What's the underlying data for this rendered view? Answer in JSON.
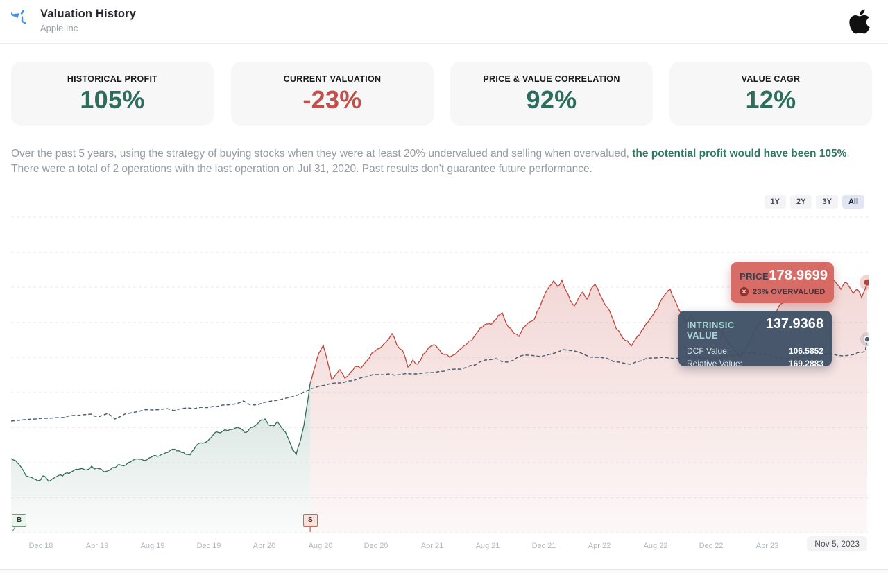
{
  "header": {
    "title": "Valuation History",
    "subtitle": "Apple Inc"
  },
  "icons": {
    "header": "history-icon",
    "brand": "apple-logo",
    "overvalued_badge": "circle-x-icon"
  },
  "stats": [
    {
      "label": "HISTORICAL PROFIT",
      "value": "105%",
      "color": "#2c6e5b"
    },
    {
      "label": "CURRENT VALUATION",
      "value": "-23%",
      "color": "#c2504a"
    },
    {
      "label": "PRICE & VALUE CORRELATION",
      "value": "92%",
      "color": "#2c6e5b"
    },
    {
      "label": "VALUE CAGR",
      "value": "12%",
      "color": "#2c6e5b"
    }
  ],
  "description": {
    "part1": "Over the past 5 years, using the strategy of buying stocks when they were at least 20% undervalued and selling when overvalued, ",
    "highlight": "the potential profit would have been 105%",
    "highlight_color": "#2c7a5f",
    "part2": ". There were a total of 2 operations with the last operation on Jul 31, 2020. Past results don't guarantee future performance."
  },
  "range_buttons": [
    {
      "label": "1Y",
      "active": false
    },
    {
      "label": "2Y",
      "active": false
    },
    {
      "label": "3Y",
      "active": false
    },
    {
      "label": "All",
      "active": true
    }
  ],
  "tooltips": {
    "price": {
      "label": "PRICE",
      "value": "178.9699",
      "badge": "23% OVERVALUED"
    },
    "intrinsic": {
      "label": "INTRINSIC VALUE",
      "value": "137.9368",
      "rows": [
        {
          "label": "DCF Value:",
          "value": "106.5852"
        },
        {
          "label": "Relative Value:",
          "value": "169.2883"
        }
      ]
    }
  },
  "x_axis": {
    "end_label": "Nov 5, 2023"
  },
  "chart_data": {
    "type": "area",
    "x_unit": "months since Dec 2018",
    "x_range": [
      -2.14,
      59.27
    ],
    "y_unit": "USD",
    "y_range": [
      0,
      226
    ],
    "grid": "horizontal-dashed",
    "legend": "none",
    "x_ticks": [
      {
        "label": "Dec 18",
        "t": 0
      },
      {
        "label": "Apr 19",
        "t": 4
      },
      {
        "label": "Aug 19",
        "t": 8
      },
      {
        "label": "Dec 19",
        "t": 12
      },
      {
        "label": "Apr 20",
        "t": 16
      },
      {
        "label": "Aug 20",
        "t": 20
      },
      {
        "label": "Dec 20",
        "t": 24
      },
      {
        "label": "Apr 21",
        "t": 28
      },
      {
        "label": "Aug 21",
        "t": 32
      },
      {
        "label": "Dec 21",
        "t": 36
      },
      {
        "label": "Apr 22",
        "t": 40
      },
      {
        "label": "Aug 22",
        "t": 44
      },
      {
        "label": "Dec 22",
        "t": 48
      },
      {
        "label": "Apr 23",
        "t": 52
      }
    ],
    "series": [
      {
        "name": "Price (undervalued / holding period)",
        "color": "#2e6e57",
        "style": "solid-area",
        "points": [
          [
            -2.14,
            52
          ],
          [
            -1.44,
            46
          ],
          [
            -0.7,
            38.5
          ],
          [
            -0.2,
            36
          ],
          [
            0.15,
            39.5
          ],
          [
            0.55,
            35.5
          ],
          [
            0.94,
            38
          ],
          [
            1.29,
            40
          ],
          [
            1.79,
            41.5
          ],
          [
            2.29,
            43
          ],
          [
            3.03,
            44.5
          ],
          [
            3.63,
            46.5
          ],
          [
            4.02,
            45
          ],
          [
            4.52,
            42.5
          ],
          [
            4.92,
            43.5
          ],
          [
            5.32,
            45.5
          ],
          [
            5.76,
            47
          ],
          [
            6.41,
            49.5
          ],
          [
            7,
            51.5
          ],
          [
            7.75,
            52.5
          ],
          [
            8.49,
            54
          ],
          [
            9.09,
            56.5
          ],
          [
            9.74,
            57.5
          ],
          [
            10.38,
            55
          ],
          [
            10.98,
            59
          ],
          [
            11.58,
            63
          ],
          [
            12.22,
            67.5
          ],
          [
            12.87,
            70.5
          ],
          [
            13.46,
            72.5
          ],
          [
            14.06,
            74.5
          ],
          [
            14.56,
            71
          ],
          [
            15.05,
            74.5
          ],
          [
            15.55,
            77.5
          ],
          [
            16.05,
            80.5
          ],
          [
            16.54,
            76
          ],
          [
            16.94,
            78.5
          ],
          [
            17.34,
            73
          ],
          [
            17.69,
            67
          ],
          [
            18.03,
            58
          ],
          [
            18.28,
            55
          ],
          [
            18.58,
            65
          ],
          [
            18.83,
            76
          ],
          [
            19.08,
            92
          ],
          [
            19.28,
            106.3
          ]
        ]
      },
      {
        "name": "Price (overvalued / sold period)",
        "color": "#c0453c",
        "style": "solid-area",
        "points": [
          [
            19.28,
            106.3
          ],
          [
            19.52,
            115
          ],
          [
            19.77,
            124
          ],
          [
            20.02,
            130
          ],
          [
            20.22,
            133.5
          ],
          [
            20.42,
            126
          ],
          [
            20.62,
            118
          ],
          [
            20.82,
            109
          ],
          [
            21.07,
            112
          ],
          [
            21.41,
            116
          ],
          [
            21.76,
            110
          ],
          [
            22.16,
            114
          ],
          [
            22.5,
            118.5
          ],
          [
            22.9,
            117
          ],
          [
            23.3,
            122
          ],
          [
            23.7,
            128
          ],
          [
            24.1,
            131
          ],
          [
            24.44,
            133
          ],
          [
            24.79,
            137
          ],
          [
            25.14,
            142
          ],
          [
            25.48,
            134
          ],
          [
            25.88,
            130
          ],
          [
            26.28,
            118
          ],
          [
            26.63,
            123
          ],
          [
            26.97,
            120
          ],
          [
            27.37,
            127
          ],
          [
            27.77,
            132
          ],
          [
            28.12,
            134
          ],
          [
            28.47,
            131
          ],
          [
            28.86,
            127
          ],
          [
            29.26,
            125
          ],
          [
            29.66,
            127
          ],
          [
            30.05,
            131
          ],
          [
            30.45,
            134
          ],
          [
            30.85,
            137
          ],
          [
            31.25,
            143
          ],
          [
            31.64,
            147
          ],
          [
            32.04,
            149
          ],
          [
            32.44,
            151
          ],
          [
            32.74,
            155
          ],
          [
            33.03,
            157
          ],
          [
            33.33,
            149
          ],
          [
            33.63,
            146
          ],
          [
            33.93,
            142
          ],
          [
            34.23,
            140
          ],
          [
            34.52,
            146
          ],
          [
            34.92,
            150
          ],
          [
            35.32,
            152
          ],
          [
            35.72,
            161
          ],
          [
            36.11,
            171
          ],
          [
            36.41,
            176
          ],
          [
            36.71,
            180
          ],
          [
            37.01,
            176
          ],
          [
            37.31,
            180.5
          ],
          [
            37.6,
            173
          ],
          [
            37.9,
            166
          ],
          [
            38.2,
            162
          ],
          [
            38.5,
            168
          ],
          [
            38.8,
            172
          ],
          [
            39.1,
            167
          ],
          [
            39.39,
            174
          ],
          [
            39.69,
            177.5
          ],
          [
            40.04,
            170
          ],
          [
            40.39,
            163
          ],
          [
            40.78,
            157
          ],
          [
            41.18,
            146
          ],
          [
            41.58,
            140
          ],
          [
            41.98,
            137
          ],
          [
            42.27,
            133
          ],
          [
            42.57,
            138
          ],
          [
            42.87,
            141
          ],
          [
            43.17,
            146
          ],
          [
            43.52,
            151
          ],
          [
            43.86,
            156
          ],
          [
            44.16,
            160
          ],
          [
            44.46,
            167
          ],
          [
            44.76,
            171
          ],
          [
            45.06,
            174
          ],
          [
            45.36,
            167
          ],
          [
            45.65,
            160
          ],
          [
            45.95,
            155
          ],
          [
            46.25,
            150
          ],
          [
            46.55,
            155
          ],
          [
            46.85,
            150
          ],
          [
            47.14,
            145
          ],
          [
            47.44,
            142
          ],
          [
            47.74,
            147
          ],
          [
            48.04,
            152
          ],
          [
            48.34,
            148
          ],
          [
            48.63,
            144
          ],
          [
            48.93,
            140
          ],
          [
            49.23,
            136
          ],
          [
            49.53,
            132
          ],
          [
            49.83,
            129
          ],
          [
            50.12,
            126
          ],
          [
            50.42,
            130
          ],
          [
            50.72,
            135
          ],
          [
            51.02,
            143
          ],
          [
            51.32,
            148
          ],
          [
            51.61,
            151
          ],
          [
            51.91,
            153
          ],
          [
            52.21,
            150
          ],
          [
            52.51,
            155
          ],
          [
            52.81,
            161
          ],
          [
            53.11,
            164
          ],
          [
            53.4,
            166
          ],
          [
            53.7,
            169
          ],
          [
            54,
            173
          ],
          [
            54.3,
            175
          ],
          [
            54.6,
            178
          ],
          [
            54.89,
            181
          ],
          [
            55.19,
            184
          ],
          [
            55.49,
            188
          ],
          [
            55.79,
            191
          ],
          [
            56.09,
            193
          ],
          [
            56.38,
            187
          ],
          [
            56.68,
            181
          ],
          [
            56.98,
            178
          ],
          [
            57.28,
            174
          ],
          [
            57.58,
            179
          ],
          [
            57.87,
            176
          ],
          [
            58.17,
            171
          ],
          [
            58.47,
            174
          ],
          [
            58.77,
            168
          ],
          [
            58.97,
            173
          ],
          [
            59.17,
            178.97
          ]
        ]
      },
      {
        "name": "Intrinsic Value",
        "color": "#4d5f78",
        "style": "dashed",
        "points": [
          [
            -2.14,
            79
          ],
          [
            -1.2,
            80
          ],
          [
            -0.4,
            80.5
          ],
          [
            0.6,
            81
          ],
          [
            1.6,
            81.5
          ],
          [
            2.6,
            83
          ],
          [
            3.6,
            84
          ],
          [
            4.1,
            82
          ],
          [
            4.8,
            84.5
          ],
          [
            5.3,
            80.5
          ],
          [
            6,
            84
          ],
          [
            7,
            86
          ],
          [
            8,
            87
          ],
          [
            9,
            88
          ],
          [
            9.5,
            86.5
          ],
          [
            10.5,
            88.5
          ],
          [
            11.5,
            89
          ],
          [
            12.3,
            89.5
          ],
          [
            13,
            90.5
          ],
          [
            14,
            91.5
          ],
          [
            14.5,
            93.5
          ],
          [
            15,
            90.5
          ],
          [
            16,
            92.5
          ],
          [
            17,
            94
          ],
          [
            18,
            96.5
          ],
          [
            18.6,
            98.5
          ],
          [
            19.1,
            101
          ],
          [
            19.6,
            103
          ],
          [
            20.1,
            104.5
          ],
          [
            20.7,
            106
          ],
          [
            21.4,
            106.5
          ],
          [
            22,
            108
          ],
          [
            22.7,
            109.5
          ],
          [
            23.4,
            111
          ],
          [
            24.1,
            112.5
          ],
          [
            24.9,
            113
          ],
          [
            25.7,
            112.5
          ],
          [
            26.5,
            113
          ],
          [
            27.3,
            113.5
          ],
          [
            28.1,
            114
          ],
          [
            28.9,
            115
          ],
          [
            29.7,
            116.5
          ],
          [
            30.4,
            117.5
          ],
          [
            31.1,
            119.5
          ],
          [
            31.8,
            123
          ],
          [
            32.6,
            124
          ],
          [
            33.4,
            121.5
          ],
          [
            34.2,
            125.5
          ],
          [
            35,
            126.5
          ],
          [
            35.8,
            125.5
          ],
          [
            36.6,
            127.5
          ],
          [
            37.4,
            130.5
          ],
          [
            38.2,
            129.5
          ],
          [
            39,
            126.5
          ],
          [
            39.8,
            125
          ],
          [
            40.6,
            124
          ],
          [
            41.4,
            121.5
          ],
          [
            42.2,
            120
          ],
          [
            43,
            122.5
          ],
          [
            43.8,
            124.5
          ],
          [
            44.6,
            125
          ],
          [
            45.4,
            124
          ],
          [
            46.2,
            125.5
          ],
          [
            47,
            125
          ],
          [
            47.8,
            123.5
          ],
          [
            48.6,
            124.5
          ],
          [
            49.4,
            126
          ],
          [
            50.2,
            127.5
          ],
          [
            51,
            128
          ],
          [
            51.8,
            127
          ],
          [
            52.6,
            125.5
          ],
          [
            53.4,
            124
          ],
          [
            54.2,
            125
          ],
          [
            55,
            126.5
          ],
          [
            55.8,
            128
          ],
          [
            56.6,
            127.5
          ],
          [
            57.4,
            126
          ],
          [
            58.2,
            127
          ],
          [
            58.8,
            128.5
          ],
          [
            59.02,
            129
          ],
          [
            59.17,
            137.94
          ]
        ]
      }
    ],
    "markers": {
      "buy": {
        "label": "B",
        "t": -1.6
      },
      "sell": {
        "label": "S",
        "t": 19.28
      }
    },
    "last_point": {
      "date_label": "Nov 5, 2023",
      "price": 178.9699,
      "intrinsic": 137.9368
    }
  }
}
